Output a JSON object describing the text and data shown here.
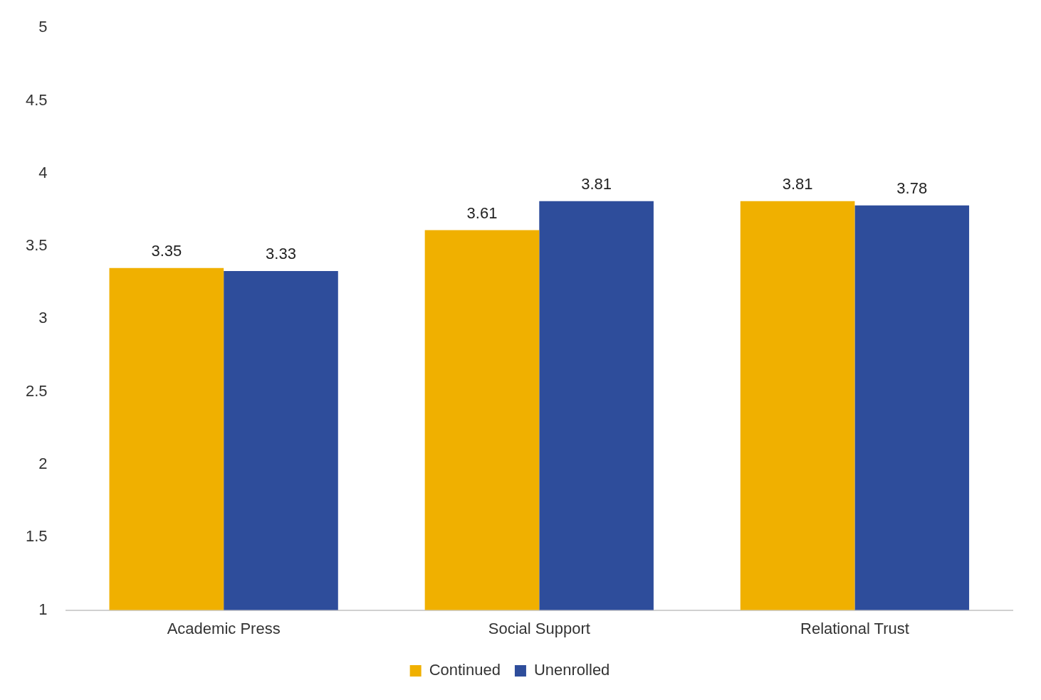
{
  "chart_data": {
    "type": "bar",
    "categories": [
      "Academic Press",
      "Social Support",
      "Relational Trust"
    ],
    "series": [
      {
        "name": "Continued",
        "color": "#f0b000",
        "values": [
          3.35,
          3.61,
          3.81
        ]
      },
      {
        "name": "Unenrolled",
        "color": "#2e4d9b",
        "values": [
          3.33,
          3.81,
          3.78
        ]
      }
    ],
    "ylim": [
      1,
      5
    ],
    "yticks": [
      1,
      1.5,
      2,
      2.5,
      3,
      3.5,
      4,
      4.5,
      5
    ],
    "grid": false,
    "legend": "bottom",
    "data_labels": true
  }
}
